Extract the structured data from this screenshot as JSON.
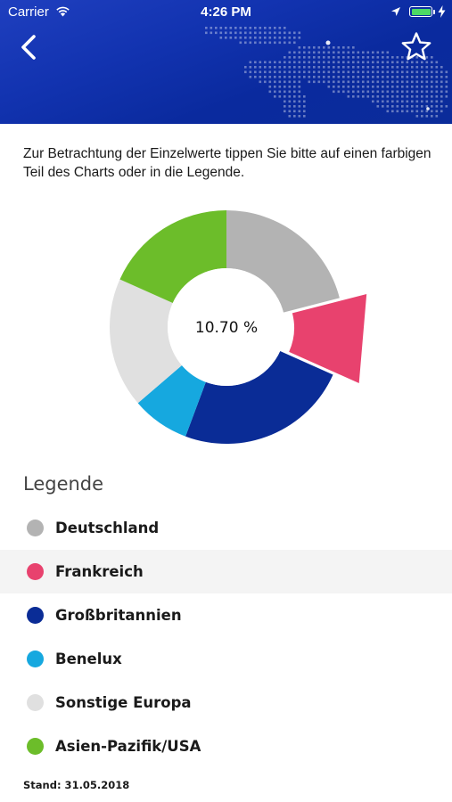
{
  "status_bar": {
    "carrier": "Carrier",
    "time": "4:26 PM"
  },
  "header": {
    "back_icon": "chevron-left-icon",
    "favorite_icon": "star-outline-icon"
  },
  "intro_text": "Zur Betrachtung der Einzelwerte tippen Sie bitte auf einen farbigen Teil des Charts oder in die Legende.",
  "chart_data": {
    "type": "pie",
    "center_label": "10.70 %",
    "selected": "Frankreich",
    "categories": [
      "Deutschland",
      "Frankreich",
      "Großbritannien",
      "Benelux",
      "Sonstige Europa",
      "Asien-Pazifik/USA"
    ],
    "values": [
      21.0,
      10.7,
      24.0,
      8.0,
      18.0,
      18.3
    ],
    "colors": [
      "#b3b3b3",
      "#e8426e",
      "#0a2c96",
      "#16a8df",
      "#e0e0e0",
      "#6cbd2a"
    ]
  },
  "legend": {
    "title": "Legende",
    "items": [
      {
        "label": "Deutschland",
        "color": "#b3b3b3"
      },
      {
        "label": "Frankreich",
        "color": "#e8426e"
      },
      {
        "label": "Großbritannien",
        "color": "#0a2c96"
      },
      {
        "label": "Benelux",
        "color": "#16a8df"
      },
      {
        "label": "Sonstige Europa",
        "color": "#e0e0e0"
      },
      {
        "label": "Asien-Pazifik/USA",
        "color": "#6cbd2a"
      }
    ]
  },
  "footer": "Stand: 31.05.2018"
}
